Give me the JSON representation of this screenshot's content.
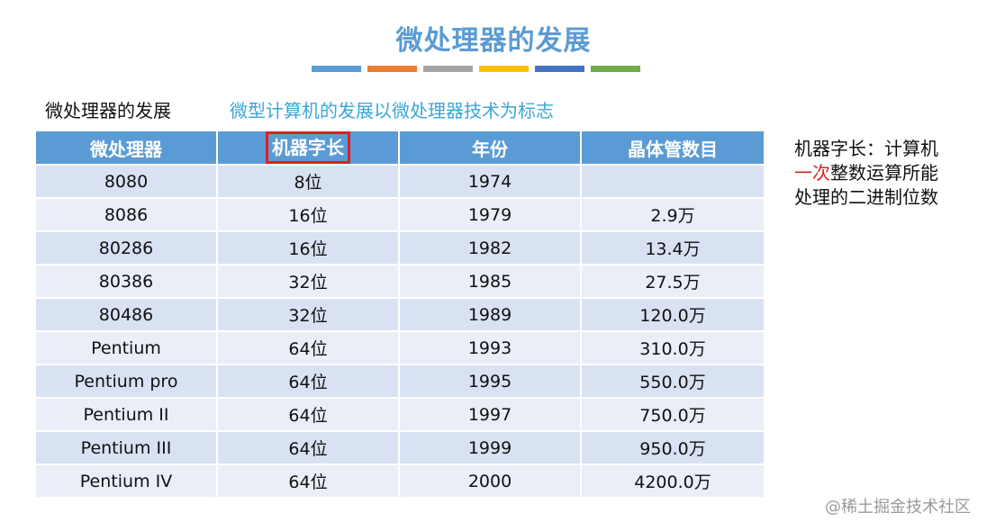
{
  "title": "微处理器的发展",
  "accent_colors": [
    "#5b9bd5",
    "#ed7d31",
    "#a5a5a5",
    "#ffc000",
    "#4472c4",
    "#70ad47"
  ],
  "subtitle": {
    "left": "微处理器的发展",
    "right": "微型计算机的发展以微处理器技术为标志"
  },
  "table": {
    "headers": [
      "微处理器",
      "机器字长",
      "年份",
      "晶体管数目"
    ],
    "highlighted_header": "机器字长",
    "rows": [
      [
        "8080",
        "8位",
        "1974",
        ""
      ],
      [
        "8086",
        "16位",
        "1979",
        "2.9万"
      ],
      [
        "80286",
        "16位",
        "1982",
        "13.4万"
      ],
      [
        "80386",
        "32位",
        "1985",
        "27.5万"
      ],
      [
        "80486",
        "32位",
        "1989",
        "120.0万"
      ],
      [
        "Pentium",
        "64位",
        "1993",
        "310.0万"
      ],
      [
        "Pentium pro",
        "64位",
        "1995",
        "550.0万"
      ],
      [
        "Pentium II",
        "64位",
        "1997",
        "750.0万"
      ],
      [
        "Pentium III",
        "64位",
        "1999",
        "950.0万"
      ],
      [
        "Pentium IV",
        "64位",
        "2000",
        "4200.0万"
      ]
    ]
  },
  "note": {
    "line1": "机器字长：计算机",
    "line2_red": "一次",
    "line2_rest": "整数运算所能",
    "line3": "处理的二进制位数"
  },
  "watermark": "@稀土掘金技术社区"
}
